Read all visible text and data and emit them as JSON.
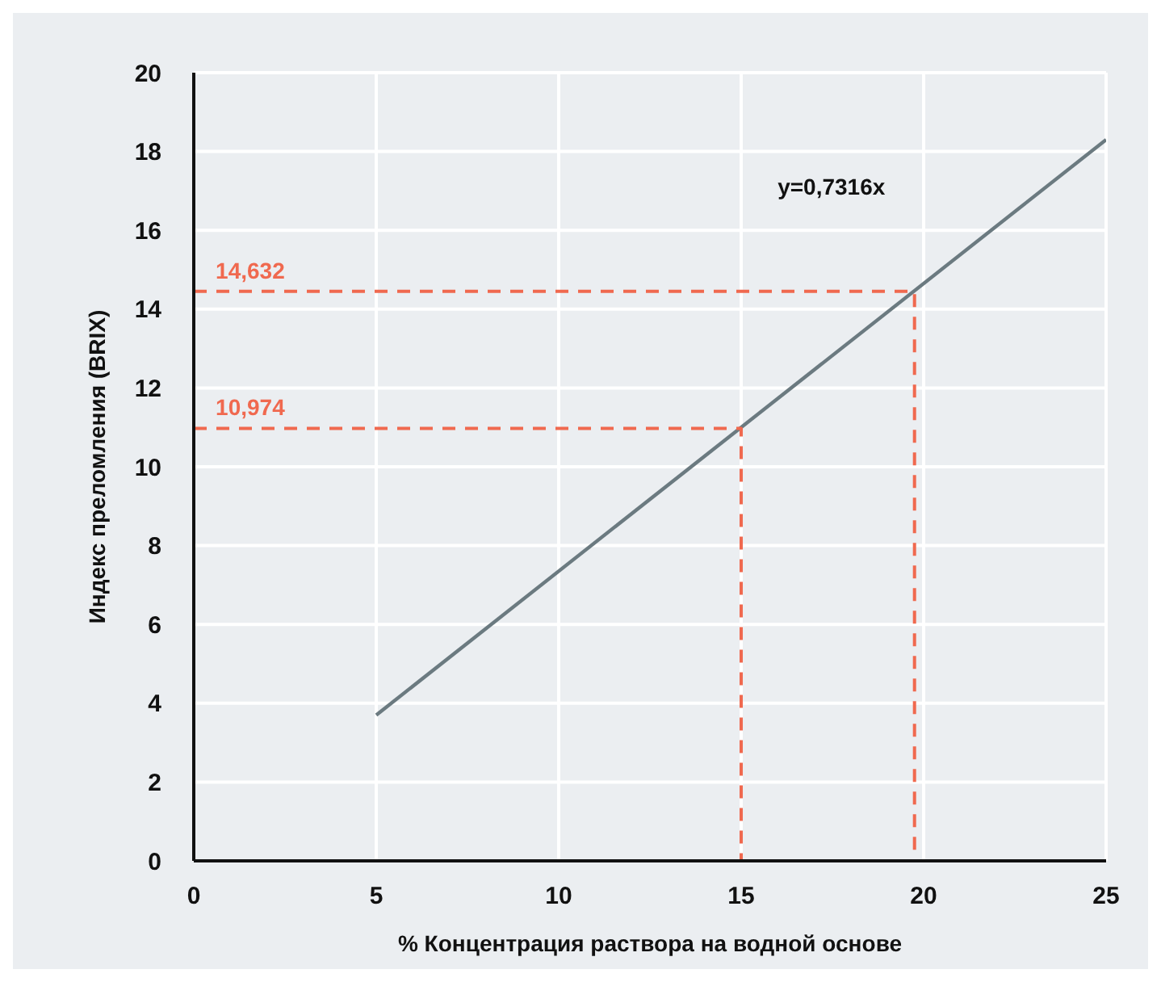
{
  "chart_data": {
    "type": "line",
    "xlabel": "% Концентрация раствора на водной основе",
    "ylabel": "Индекс преломления (BRIX)",
    "xlim": [
      0,
      25
    ],
    "xticks": [
      0,
      5,
      10,
      15,
      20,
      25
    ],
    "ylim": [
      0,
      20
    ],
    "yticks": [
      0,
      2,
      4,
      6,
      8,
      10,
      12,
      14,
      16,
      18,
      20
    ],
    "grid": true,
    "series": [
      {
        "color": "#6b7a80",
        "x": [
          5,
          25
        ],
        "values": [
          3.7,
          18.3
        ]
      },
      {
        "color": "#f0694f",
        "line_style": "dashed",
        "x": [
          0,
          15,
          15
        ],
        "values": [
          10.974,
          10.974,
          0
        ]
      },
      {
        "color": "#f0694f",
        "line_style": "dashed",
        "x": [
          0,
          19.75,
          19.75
        ],
        "values": [
          14.45,
          14.45,
          0
        ]
      }
    ],
    "annotations": [
      "y=0,7316x",
      {
        "text": "10,974",
        "x": 0.6,
        "y": 10.974
      },
      {
        "text": "14,632",
        "x": 0.6,
        "y": 14.45
      }
    ]
  }
}
